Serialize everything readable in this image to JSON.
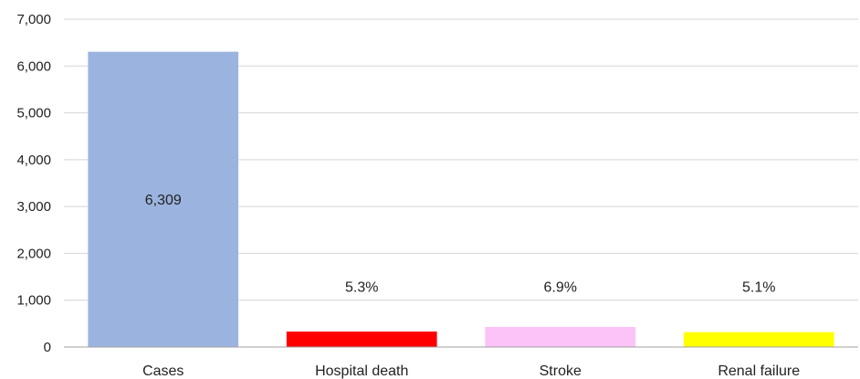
{
  "chart_data": {
    "type": "bar",
    "title": "",
    "xlabel": "",
    "ylabel": "",
    "categories": [
      "Cases",
      "Hospital death",
      "Stroke",
      "Renal failure"
    ],
    "values": [
      6309,
      334,
      435,
      322
    ],
    "data_labels": [
      "6,309",
      "5.3%",
      "6.9%",
      "5.1%"
    ],
    "colors": [
      "#9bb4df",
      "#ff0000",
      "#fcc3f8",
      "#ffff00"
    ],
    "ylim": [
      0,
      7000
    ],
    "yticks": [
      0,
      1000,
      2000,
      3000,
      4000,
      5000,
      6000,
      7000
    ],
    "ytick_labels": [
      "0",
      "1,000",
      "2,000",
      "3,000",
      "4,000",
      "5,000",
      "6,000",
      "7,000"
    ],
    "grid": true,
    "legend": "none"
  }
}
